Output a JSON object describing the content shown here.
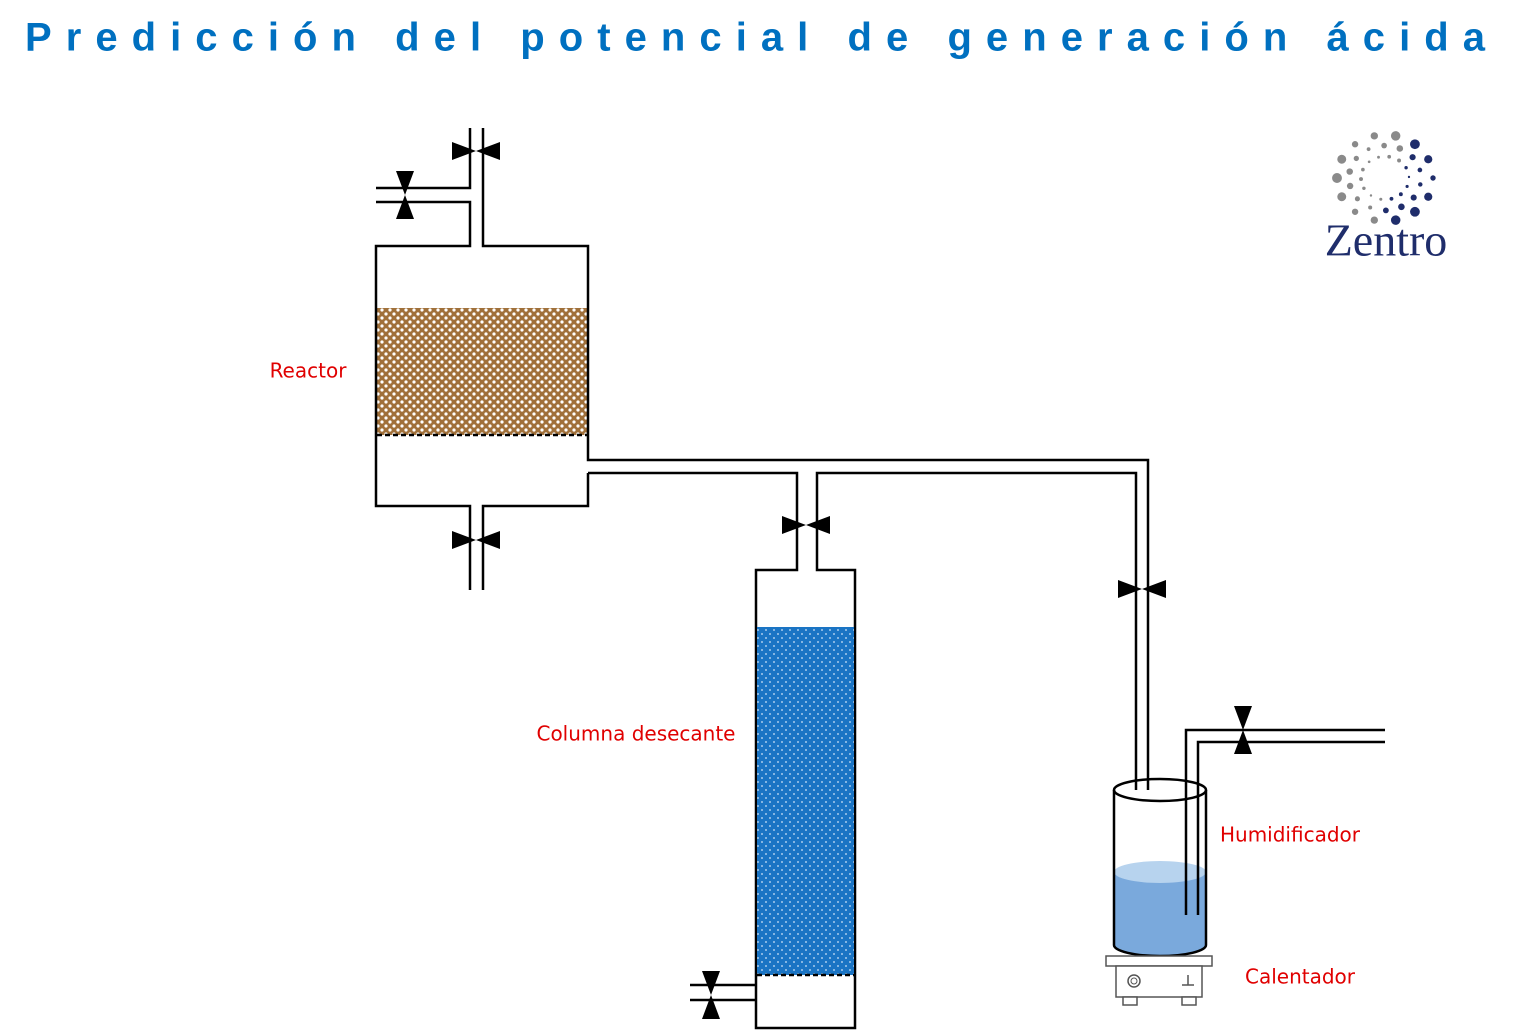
{
  "header": {
    "title": "Predicción del potencial de generación ácida"
  },
  "logo": {
    "text": "Zentro"
  },
  "labels": {
    "reactor": "Reactor",
    "column": "Columna desecante",
    "humidifier": "Humidificador",
    "heater": "Calentador"
  }
}
